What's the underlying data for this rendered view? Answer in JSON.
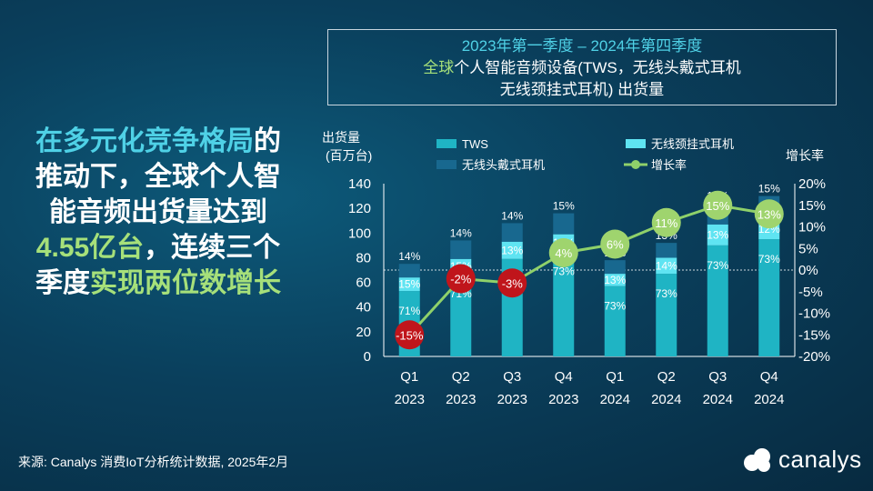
{
  "title": {
    "line1": "2023年第一季度 – 2024年第四季度",
    "line2_accent": "全球",
    "line2_rest": "个人智能音频设备(TWS，无线头戴式耳机",
    "line3": "无线颈挂式耳机) 出货量"
  },
  "headline": {
    "part1": "在多元化竞争格局",
    "part2": "的推动下，全球个人智能音频出货量达到",
    "highlight_value": "4.55亿台",
    "part3": "，连续三个季度",
    "highlight_end": "实现两位数增长"
  },
  "source": "来源: Canalys 消费IoT分析统计数据, 2025年2月",
  "logo": {
    "text": "canalys",
    "icon": "canalys-logo-icon"
  },
  "chart_data": {
    "type": "bar",
    "stacked": true,
    "ylabel_line1": "出货量",
    "ylabel_line2": "(百万台)",
    "y2label": "增长率",
    "ylim": [
      0,
      140
    ],
    "yticks": [
      "0",
      "20",
      "40",
      "60",
      "80",
      "100",
      "120",
      "140"
    ],
    "y2lim": [
      -20,
      20
    ],
    "y2ticks": [
      "-20%",
      "-15%",
      "-10%",
      "-5%",
      "0%",
      "5%",
      "10%",
      "15%",
      "20%"
    ],
    "categories": [
      {
        "q": "Q1",
        "year": "2023"
      },
      {
        "q": "Q2",
        "year": "2023"
      },
      {
        "q": "Q3",
        "year": "2023"
      },
      {
        "q": "Q4",
        "year": "2023"
      },
      {
        "q": "Q1",
        "year": "2024"
      },
      {
        "q": "Q2",
        "year": "2024"
      },
      {
        "q": "Q3",
        "year": "2024"
      },
      {
        "q": "Q4",
        "year": "2024"
      }
    ],
    "series": [
      {
        "name": "TWS",
        "color": "#1fb4c4",
        "values": [
          53,
          67,
          79,
          85,
          57,
          67,
          90,
          95
        ],
        "labels": [
          "71%",
          "71%",
          "73%",
          "73%",
          "73%",
          "73%",
          "73%",
          "73%"
        ]
      },
      {
        "name": "无线颈挂式耳机",
        "color": "#5fe4f2",
        "values": [
          11,
          12,
          14,
          14,
          10,
          13,
          17,
          16
        ],
        "labels": [
          "15%",
          "15%",
          "13%",
          "12%",
          "13%",
          "14%",
          "13%",
          "12%"
        ]
      },
      {
        "name": "无线头戴式耳机",
        "color": "#18688f",
        "values": [
          11,
          15,
          15,
          17,
          11,
          12,
          17,
          19
        ],
        "labels": [
          "14%",
          "14%",
          "14%",
          "15%",
          "15%",
          "13%",
          "14%",
          "15%"
        ]
      }
    ],
    "growth": {
      "name": "增长率",
      "values": [
        -15,
        -2,
        -3,
        4,
        6,
        11,
        15,
        13
      ],
      "labels": [
        "-15%",
        "-2%",
        "-3%",
        "4%",
        "6%",
        "11%",
        "15%",
        "13%"
      ],
      "line_color": "#8fd16a",
      "positive_color": "#9fd46e",
      "negative_color": "#c0151b"
    }
  }
}
